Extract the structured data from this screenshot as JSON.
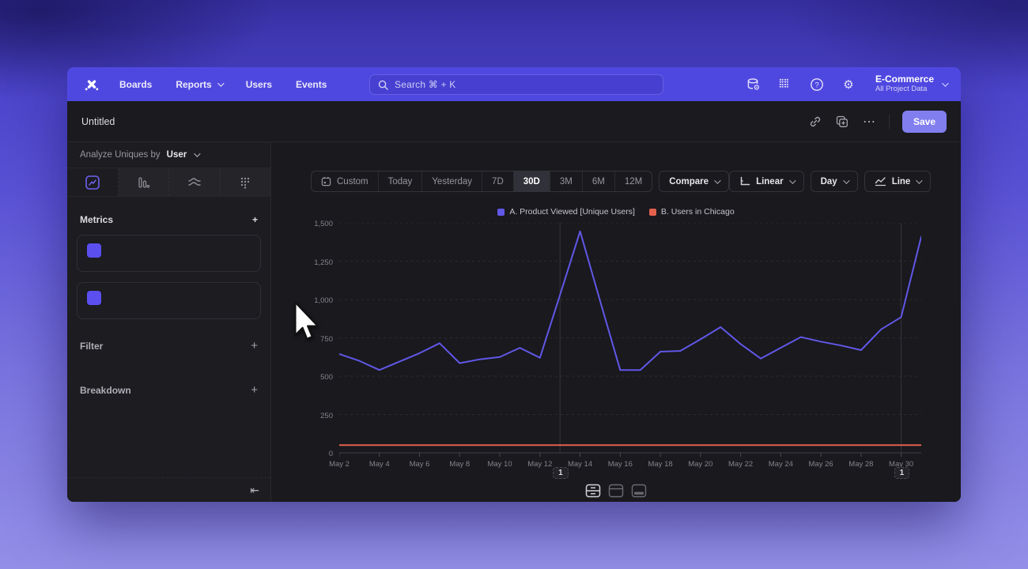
{
  "nav": {
    "items": [
      {
        "label": "Boards",
        "chevron": false
      },
      {
        "label": "Reports",
        "chevron": true
      },
      {
        "label": "Users",
        "chevron": false
      },
      {
        "label": "Events",
        "chevron": false
      }
    ],
    "search_placeholder": "Search  ⌘ + K",
    "project_name": "E-Commerce",
    "project_sub": "All Project Data"
  },
  "header": {
    "title": "Untitled",
    "save_label": "Save",
    "more_label": "⋯"
  },
  "sidebar": {
    "analyze_prefix": "Analyze Uniques by",
    "analyze_value": "User",
    "metrics_label": "Metrics",
    "metrics": [
      {
        "letter": "A",
        "name": "Product Viewed",
        "sub": "Unique Users"
      },
      {
        "letter": "B",
        "name": "Users in Chicago",
        "sub": "Unique Users"
      }
    ],
    "filter_label": "Filter",
    "breakdown_label": "Breakdown",
    "add_label": "+",
    "kebab_glyph": "⋮",
    "collapse_glyph": "⇤"
  },
  "toolbar": {
    "ranges": [
      "Custom",
      "Today",
      "Yesterday",
      "7D",
      "30D",
      "3M",
      "6M",
      "12M"
    ],
    "selected_range": "30D",
    "compare_label": "Compare",
    "scale_label": "Linear",
    "interval_label": "Day",
    "chart_type_label": "Line"
  },
  "colors": {
    "accent": "#4f48e0",
    "save": "#817ef0",
    "series_a": "#6157e6",
    "series_b": "#e2604d"
  },
  "chart_data": {
    "type": "line",
    "x": [
      "May 2",
      "May 3",
      "May 4",
      "May 5",
      "May 6",
      "May 7",
      "May 8",
      "May 9",
      "May 10",
      "May 11",
      "May 12",
      "May 13",
      "May 14",
      "May 15",
      "May 16",
      "May 17",
      "May 18",
      "May 19",
      "May 20",
      "May 21",
      "May 22",
      "May 23",
      "May 24",
      "May 25",
      "May 26",
      "May 27",
      "May 28",
      "May 29",
      "May 30",
      "May 31"
    ],
    "x_ticks_shown": [
      "May 2",
      "May 4",
      "May 6",
      "May 8",
      "May 10",
      "May 12",
      "May 14",
      "May 16",
      "May 18",
      "May 20",
      "May 22",
      "May 24",
      "May 26",
      "May 28",
      "May 30"
    ],
    "series": [
      {
        "name": "A. Product Viewed [Unique Users]",
        "color": "#6157e6",
        "values": [
          645,
          600,
          540,
          595,
          650,
          715,
          585,
          610,
          625,
          685,
          620,
          1030,
          1445,
          990,
          540,
          540,
          660,
          665,
          740,
          820,
          710,
          615,
          685,
          755,
          725,
          700,
          670,
          805,
          885,
          1410
        ]
      },
      {
        "name": "B. Users in Chicago",
        "color": "#e2604d",
        "values": [
          50,
          50,
          50,
          50,
          50,
          50,
          50,
          50,
          50,
          50,
          50,
          50,
          50,
          50,
          50,
          50,
          50,
          50,
          50,
          50,
          50,
          50,
          50,
          50,
          50,
          50,
          50,
          50,
          50,
          50
        ]
      }
    ],
    "ylim": [
      0,
      1500
    ],
    "yticks": [
      {
        "value": 0,
        "label": "0"
      },
      {
        "value": 250,
        "label": "250"
      },
      {
        "value": 500,
        "label": "500"
      },
      {
        "value": 750,
        "label": "750"
      },
      {
        "value": 1000,
        "label": "1,000"
      },
      {
        "value": 1250,
        "label": "1,250"
      },
      {
        "value": 1500,
        "label": "1,500"
      }
    ],
    "annotations": [
      {
        "x": "May 13",
        "label": "1"
      },
      {
        "x": "May 30",
        "label": "1"
      }
    ],
    "grid": "horizontal-dashed",
    "legend_position": "top-center"
  }
}
